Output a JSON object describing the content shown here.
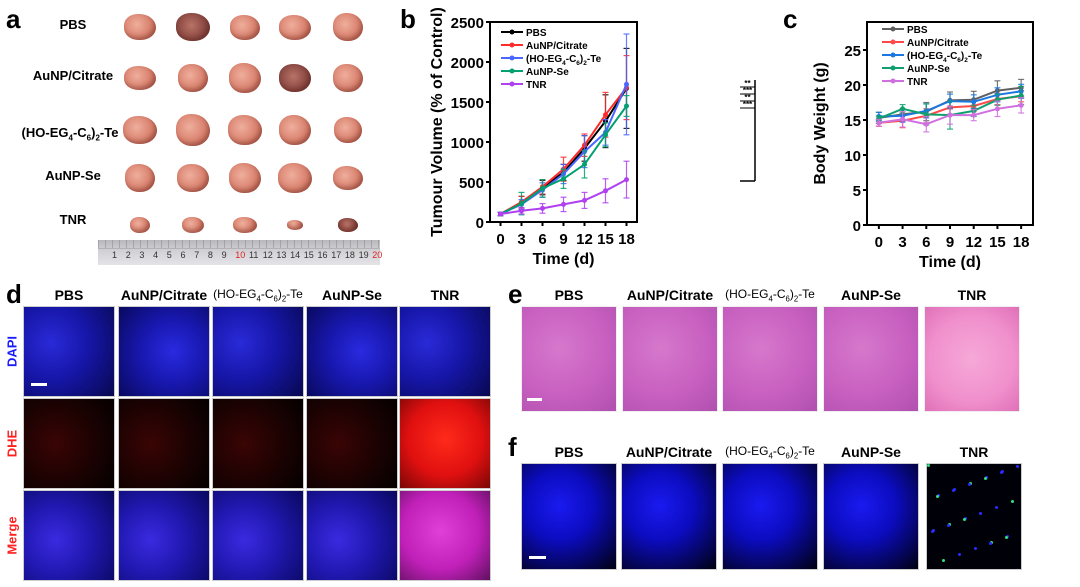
{
  "groups": [
    "PBS",
    "AuNP/Citrate",
    "(HO-EG4-C6)2-Te",
    "AuNP-Se",
    "TNR"
  ],
  "panel_a": {
    "label": "a",
    "row_labels": [
      "PBS",
      "AuNP/Citrate",
      "(HO-EG4-C6)2-Te",
      "AuNP-Se",
      "TNR"
    ],
    "ruler_numbers": [
      "1",
      "2",
      "3",
      "4",
      "5",
      "6",
      "7",
      "8",
      "9",
      "10",
      "11",
      "12",
      "13",
      "14",
      "15",
      "16",
      "17",
      "18",
      "19",
      "20"
    ]
  },
  "panel_d": {
    "label": "d",
    "col_labels": [
      "PBS",
      "AuNP/Citrate",
      "(HO-EG4-C6)2-Te",
      "AuNP-Se",
      "TNR"
    ],
    "row_labels": [
      "DAPI",
      "DHE",
      "Merge"
    ],
    "row_label_colors": [
      "#1a1aff",
      "#ff2020",
      "#ff2020"
    ]
  },
  "panel_e": {
    "label": "e",
    "col_labels": [
      "PBS",
      "AuNP/Citrate",
      "(HO-EG4-C6)2-Te",
      "AuNP-Se",
      "TNR"
    ]
  },
  "panel_f": {
    "label": "f",
    "col_labels": [
      "PBS",
      "AuNP/Citrate",
      "(HO-EG4-C6)2-Te",
      "AuNP-Se",
      "TNR"
    ]
  },
  "chart_data": [
    {
      "panel": "b",
      "type": "line",
      "title": "",
      "xlabel": "Time (d)",
      "ylabel": "Tumour Volume (% of Control)",
      "x": [
        0,
        3,
        6,
        9,
        12,
        15,
        18
      ],
      "xticks": [
        "0",
        "3",
        "6",
        "9",
        "12",
        "15",
        "18"
      ],
      "yticks": [
        "0",
        "500",
        "1000",
        "1500",
        "2000",
        "2500"
      ],
      "xlim": [
        -1.5,
        19.5
      ],
      "ylim": [
        0,
        2500
      ],
      "legend": "top-left",
      "grid": false,
      "series": [
        {
          "name": "PBS",
          "color": "#000000",
          "marker": "square",
          "values": [
            100,
            240,
            430,
            620,
            920,
            1260,
            1670
          ],
          "err": [
            20,
            80,
            90,
            100,
            160,
            330,
            500
          ]
        },
        {
          "name": "AuNP/Citrate",
          "color": "#ff2a2a",
          "marker": "circle",
          "values": [
            100,
            250,
            440,
            660,
            960,
            1340,
            1680
          ],
          "err": [
            20,
            70,
            90,
            150,
            140,
            280,
            400
          ]
        },
        {
          "name": "(HO-EG4-C6)2-Te",
          "color": "#4a66ff",
          "marker": "triangle-up",
          "values": [
            100,
            220,
            400,
            600,
            880,
            1120,
            1720
          ],
          "err": [
            20,
            60,
            90,
            120,
            200,
            160,
            630
          ]
        },
        {
          "name": "AuNP-Se",
          "color": "#00a070",
          "marker": "triangle-down",
          "values": [
            100,
            230,
            420,
            540,
            720,
            1090,
            1450
          ],
          "err": [
            20,
            140,
            110,
            120,
            170,
            150,
            130
          ]
        },
        {
          "name": "TNR",
          "color": "#b040f0",
          "marker": "diamond",
          "values": [
            100,
            140,
            170,
            220,
            270,
            390,
            530
          ],
          "err": [
            20,
            40,
            60,
            90,
            100,
            150,
            230
          ]
        }
      ],
      "significance": [
        "**",
        "***",
        "**",
        "***"
      ]
    },
    {
      "panel": "c",
      "type": "line",
      "title": "",
      "xlabel": "Time (d)",
      "ylabel": "Body Weight (g)",
      "x": [
        0,
        3,
        6,
        9,
        12,
        15,
        18
      ],
      "xticks": [
        "0",
        "3",
        "6",
        "9",
        "12",
        "15",
        "18"
      ],
      "yticks": [
        "0",
        "5",
        "10",
        "15",
        "20",
        "25"
      ],
      "xlim": [
        -1.5,
        19.5
      ],
      "ylim": [
        0,
        29
      ],
      "legend": "top-left",
      "grid": false,
      "series": [
        {
          "name": "PBS",
          "color": "#606060",
          "marker": "square",
          "values": [
            15.3,
            15.8,
            16.2,
            17.8,
            17.9,
            19.2,
            19.6
          ],
          "err": [
            0.8,
            0.8,
            1.3,
            1.2,
            1.2,
            1.4,
            1.2
          ]
        },
        {
          "name": "AuNP/Citrate",
          "color": "#ff4a4a",
          "marker": "circle",
          "values": [
            14.6,
            14.9,
            15.6,
            16.8,
            17.0,
            18.0,
            18.4
          ],
          "err": [
            0.5,
            1.0,
            1.0,
            1.0,
            0.8,
            0.8,
            0.8
          ]
        },
        {
          "name": "(HO-EG4-C6)2-Te",
          "color": "#1a78e0",
          "marker": "triangle-up",
          "values": [
            15.5,
            15.6,
            16.3,
            17.7,
            17.6,
            18.6,
            19.1
          ],
          "err": [
            0.6,
            0.9,
            1.0,
            1.0,
            1.0,
            1.0,
            1.0
          ]
        },
        {
          "name": "AuNP-Se",
          "color": "#10a070",
          "marker": "triangle-down",
          "values": [
            15.2,
            16.6,
            15.8,
            15.7,
            16.3,
            17.9,
            18.5
          ],
          "err": [
            0.4,
            0.6,
            1.5,
            2.0,
            0.8,
            0.8,
            1.3
          ]
        },
        {
          "name": "TNR",
          "color": "#d070e0",
          "marker": "diamond",
          "values": [
            14.6,
            15.1,
            14.4,
            15.7,
            15.7,
            16.6,
            17.1
          ],
          "err": [
            0.5,
            1.1,
            1.1,
            1.3,
            0.8,
            1.1,
            1.1
          ]
        }
      ]
    }
  ]
}
